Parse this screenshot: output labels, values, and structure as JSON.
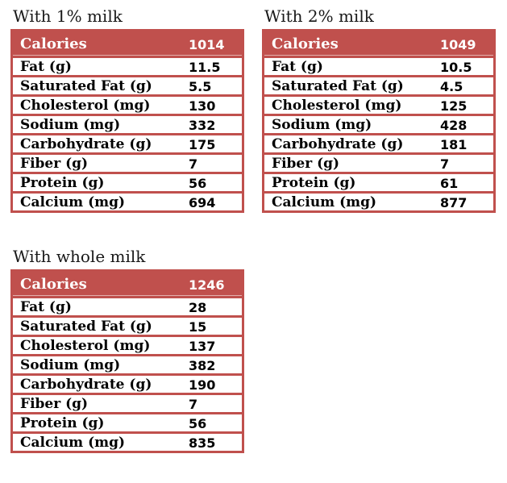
{
  "colors": {
    "accent": "#c0504d",
    "row_background": "#ffffff",
    "label_text": "#000000",
    "header_text": "#ffffff"
  },
  "tables": [
    {
      "title": "With 1% milk",
      "header": {
        "label": "Calories",
        "value": "1014"
      },
      "rows": [
        {
          "label": "Fat (g)",
          "value": "11.5"
        },
        {
          "label": "Saturated Fat (g)",
          "value": "5.5"
        },
        {
          "label": "Cholesterol (mg)",
          "value": "130"
        },
        {
          "label": "Sodium (mg)",
          "value": "332"
        },
        {
          "label": "Carbohydrate (g)",
          "value": "175"
        },
        {
          "label": "Fiber (g)",
          "value": "7"
        },
        {
          "label": "Protein (g)",
          "value": "56"
        },
        {
          "label": "Calcium (mg)",
          "value": "694"
        }
      ]
    },
    {
      "title": "With 2% milk",
      "header": {
        "label": "Calories",
        "value": "1049"
      },
      "rows": [
        {
          "label": "Fat (g)",
          "value": "10.5"
        },
        {
          "label": "Saturated Fat (g)",
          "value": "4.5"
        },
        {
          "label": "Cholesterol (mg)",
          "value": "125"
        },
        {
          "label": "Sodium (mg)",
          "value": "428"
        },
        {
          "label": "Carbohydrate (g)",
          "value": "181"
        },
        {
          "label": "Fiber (g)",
          "value": "7"
        },
        {
          "label": "Protein (g)",
          "value": "61"
        },
        {
          "label": "Calcium (mg)",
          "value": "877"
        }
      ]
    },
    {
      "title": "With whole milk",
      "header": {
        "label": "Calories",
        "value": "1246"
      },
      "rows": [
        {
          "label": "Fat (g)",
          "value": "28"
        },
        {
          "label": "Saturated Fat (g)",
          "value": "15"
        },
        {
          "label": "Cholesterol (mg)",
          "value": "137"
        },
        {
          "label": "Sodium (mg)",
          "value": "382"
        },
        {
          "label": "Carbohydrate (g)",
          "value": "190"
        },
        {
          "label": "Fiber (g)",
          "value": "7"
        },
        {
          "label": "Protein (g)",
          "value": "56"
        },
        {
          "label": "Calcium (mg)",
          "value": "835"
        }
      ]
    }
  ]
}
